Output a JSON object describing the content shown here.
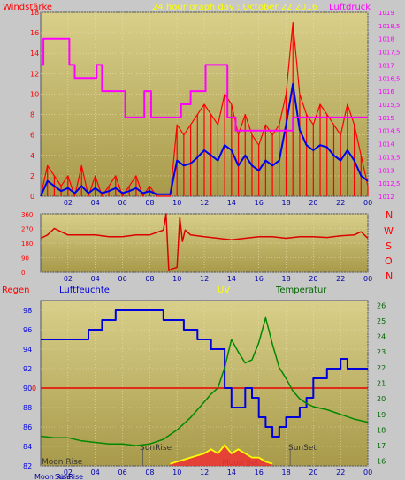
{
  "header": {
    "left_label": "Windstärke",
    "title": "24 hour graph day : October 22 2016",
    "right_label": "Luftdruck"
  },
  "colors": {
    "background": "#c8c8c8",
    "plot_bg_top": "#d8cf8a",
    "plot_bg_bottom": "#a89a4a",
    "wind": "#ff0000",
    "wind_avg": "#0000ee",
    "pressure": "#ff00ff",
    "direction": "#dd0000",
    "humidity": "#0000dd",
    "temperature": "#008800",
    "uv": "#ffff00",
    "rain": "#ee0000",
    "title": "#ffff00",
    "axis_left": "#ff0000",
    "axis_right": "#ff00ff"
  },
  "chart_data": [
    {
      "type": "line",
      "ylabel": "Windstärke",
      "y2label": "Luftdruck",
      "xtick_labels": [
        "02",
        "04",
        "06",
        "08",
        "10",
        "12",
        "14",
        "16",
        "18",
        "20",
        "22",
        "00"
      ],
      "xlim": [
        0,
        24
      ],
      "ylim": [
        0,
        18
      ],
      "y_ticks": [
        0,
        2,
        4,
        6,
        8,
        10,
        12,
        14,
        16,
        18
      ],
      "y2lim": [
        1012,
        1019
      ],
      "y2_ticks": [
        "1012",
        "1012,5",
        "1013",
        "1013,5",
        "1014",
        "1014,5",
        "1015",
        "1015,5",
        "1016",
        "1016,5",
        "1017",
        "1017,5",
        "1018",
        "1018,5",
        "1019"
      ],
      "series": [
        {
          "axis": "left",
          "x": [
            0,
            0.5,
            1,
            1.5,
            2,
            2.5,
            3,
            3.5,
            4,
            4.5,
            5,
            5.5,
            6,
            6.5,
            7,
            7.5,
            8,
            8.5,
            9,
            9.5,
            10,
            10.5,
            11,
            11.5,
            12,
            12.5,
            13,
            13.5,
            14,
            14.5,
            15,
            15.5,
            16,
            16.5,
            17,
            17.5,
            18,
            18.5,
            19,
            19.5,
            20,
            20.5,
            21,
            21.5,
            22,
            22.5,
            23,
            23.5,
            24
          ],
          "values": [
            0,
            3,
            2,
            1,
            2,
            0,
            3,
            0,
            2,
            0,
            1,
            2,
            0,
            1,
            2,
            0,
            1,
            0,
            0,
            0,
            7,
            6,
            7,
            8,
            9,
            8,
            7,
            10,
            9,
            6,
            8,
            6,
            5,
            7,
            6,
            7,
            10,
            17,
            10,
            8,
            7,
            9,
            8,
            7,
            6,
            9,
            7,
            4,
            1
          ]
        },
        {
          "axis": "left",
          "x": [
            0,
            0.5,
            1,
            1.5,
            2,
            2.5,
            3,
            3.5,
            4,
            4.5,
            5,
            5.5,
            6,
            6.5,
            7,
            7.5,
            8,
            8.5,
            9,
            9.5,
            10,
            10.5,
            11,
            11.5,
            12,
            12.5,
            13,
            13.5,
            14,
            14.5,
            15,
            15.5,
            16,
            16.5,
            17,
            17.5,
            18,
            18.5,
            19,
            19.5,
            20,
            20.5,
            21,
            21.5,
            22,
            22.5,
            23,
            23.5,
            24
          ],
          "values": [
            0,
            1.5,
            1,
            0.5,
            0.8,
            0.3,
            1,
            0.3,
            0.8,
            0.3,
            0.5,
            0.8,
            0.3,
            0.5,
            0.8,
            0.3,
            0.5,
            0.2,
            0.2,
            0.2,
            3.5,
            3,
            3.2,
            3.8,
            4.5,
            4,
            3.5,
            5,
            4.5,
            3,
            4,
            3,
            2.5,
            3.5,
            3,
            3.5,
            7,
            11,
            6.5,
            5,
            4.5,
            5,
            4.8,
            4,
            3.5,
            4.5,
            3.5,
            2,
            1.5
          ]
        },
        {
          "axis": "right",
          "x": [
            0,
            0.2,
            0.2,
            2.1,
            2.1,
            2.5,
            2.5,
            4.1,
            4.1,
            4.5,
            4.5,
            6.2,
            6.2,
            7.6,
            7.6,
            8.1,
            8.1,
            10.3,
            10.3,
            11,
            11,
            12.1,
            12.1,
            13.7,
            13.7,
            14.3,
            14.3,
            18.5,
            18.5,
            20.3,
            20.3,
            24
          ],
          "values": [
            1017,
            1017,
            1018,
            1018,
            1017,
            1017,
            1016.5,
            1016.5,
            1017,
            1017,
            1016,
            1016,
            1015,
            1015,
            1016,
            1016,
            1015,
            1015,
            1015.5,
            1015.5,
            1016,
            1016,
            1017,
            1017,
            1015,
            1015,
            1014.5,
            1014.5,
            1015,
            1015,
            1015,
            1015
          ]
        }
      ]
    },
    {
      "type": "line",
      "ylim": [
        0,
        360
      ],
      "y_ticks": [
        0,
        90,
        180,
        270,
        360
      ],
      "y_tick_labels": [
        "0",
        "90",
        "180",
        "270",
        "360"
      ],
      "direction_labels": [
        "N",
        "W",
        "S",
        "O",
        "N"
      ],
      "xtick_labels": [
        "02",
        "04",
        "06",
        "08",
        "10",
        "12",
        "14",
        "16",
        "18",
        "20",
        "22",
        "00"
      ],
      "series": [
        {
          "x": [
            0,
            0.5,
            1,
            1.5,
            2,
            3,
            4,
            5,
            6,
            7,
            8,
            9,
            9.2,
            9.4,
            9.6,
            10,
            10.2,
            10.4,
            10.6,
            11,
            12,
            13,
            14,
            15,
            16,
            17,
            18,
            19,
            20,
            21,
            22,
            23,
            23.5,
            24
          ],
          "values": [
            210,
            230,
            270,
            250,
            230,
            230,
            230,
            220,
            220,
            230,
            230,
            260,
            360,
            10,
            20,
            30,
            340,
            190,
            260,
            230,
            220,
            210,
            200,
            210,
            220,
            220,
            210,
            220,
            220,
            215,
            225,
            230,
            250,
            210
          ]
        }
      ]
    },
    {
      "type": "line",
      "header_labels": [
        "Regen",
        "Luftfeuchte",
        "UV",
        "Temperatur"
      ],
      "left_ticks": [
        "82",
        "84",
        "86",
        "88",
        "90",
        "92",
        "94",
        "96",
        "98"
      ],
      "right_ticks": [
        "16",
        "17",
        "18",
        "19",
        "20",
        "21",
        "22",
        "23",
        "24",
        "25",
        "26"
      ],
      "rain_tick": "0",
      "annotations": [
        "Moon Rise",
        "SunRise",
        "Moon Set",
        "SunSet"
      ],
      "xtick_labels": [
        "02",
        "04",
        "06",
        "08",
        "10",
        "12",
        "14",
        "16",
        "18",
        "20",
        "22",
        "00"
      ],
      "ylim": [
        82,
        99
      ],
      "y2lim": [
        15.7,
        26.3
      ],
      "series": [
        {
          "axis": "left",
          "x": [
            0,
            3.5,
            3.5,
            4.5,
            4.5,
            5.5,
            5.5,
            6.5,
            6.5,
            9,
            9,
            10.5,
            10.5,
            11.5,
            11.5,
            12.5,
            12.5,
            13.5,
            13.5,
            14,
            14,
            15,
            15,
            15.5,
            15.5,
            16,
            16,
            16.5,
            16.5,
            17,
            17,
            17.5,
            17.5,
            18,
            18,
            19,
            19,
            19.5,
            19.5,
            20,
            20,
            21,
            21,
            22,
            22,
            22.5,
            22.5,
            23.5,
            23.5,
            24
          ],
          "values": [
            95,
            95,
            96,
            96,
            97,
            97,
            98,
            98,
            98,
            98,
            97,
            97,
            96,
            96,
            95,
            95,
            94,
            94,
            90,
            90,
            88,
            88,
            90,
            90,
            89,
            89,
            87,
            87,
            86,
            86,
            85,
            85,
            86,
            86,
            87,
            87,
            88,
            88,
            89,
            89,
            91,
            91,
            92,
            92,
            93,
            93,
            92,
            92,
            92,
            92
          ]
        },
        {
          "axis": "right",
          "x": [
            0,
            1,
            2,
            3,
            4,
            5,
            6,
            7,
            8,
            9,
            10,
            11,
            12,
            12.5,
            13,
            13.5,
            14,
            14.5,
            15,
            15.5,
            16,
            16.5,
            17,
            17.5,
            18,
            18.5,
            19,
            19.5,
            20,
            21,
            22,
            23,
            24
          ],
          "values": [
            17.6,
            17.5,
            17.5,
            17.3,
            17.2,
            17.1,
            17.1,
            17,
            17.1,
            17.4,
            18,
            18.8,
            19.8,
            20.3,
            20.7,
            22,
            23.8,
            23,
            22.3,
            22.5,
            23.6,
            25.2,
            23.5,
            22,
            21.3,
            20.5,
            20,
            19.7,
            19.5,
            19.3,
            19,
            18.7,
            18.5
          ]
        },
        {
          "axis": "uv",
          "x": [
            9.5,
            10,
            10.5,
            11,
            11.5,
            12,
            12.5,
            13,
            13.5,
            14,
            14.5,
            15,
            15.5,
            16,
            16.5,
            17
          ],
          "values": [
            0.5,
            1,
            1.5,
            2,
            2.5,
            3,
            4,
            3,
            5,
            3,
            4,
            3,
            2,
            2,
            1,
            0.5
          ]
        }
      ]
    }
  ]
}
